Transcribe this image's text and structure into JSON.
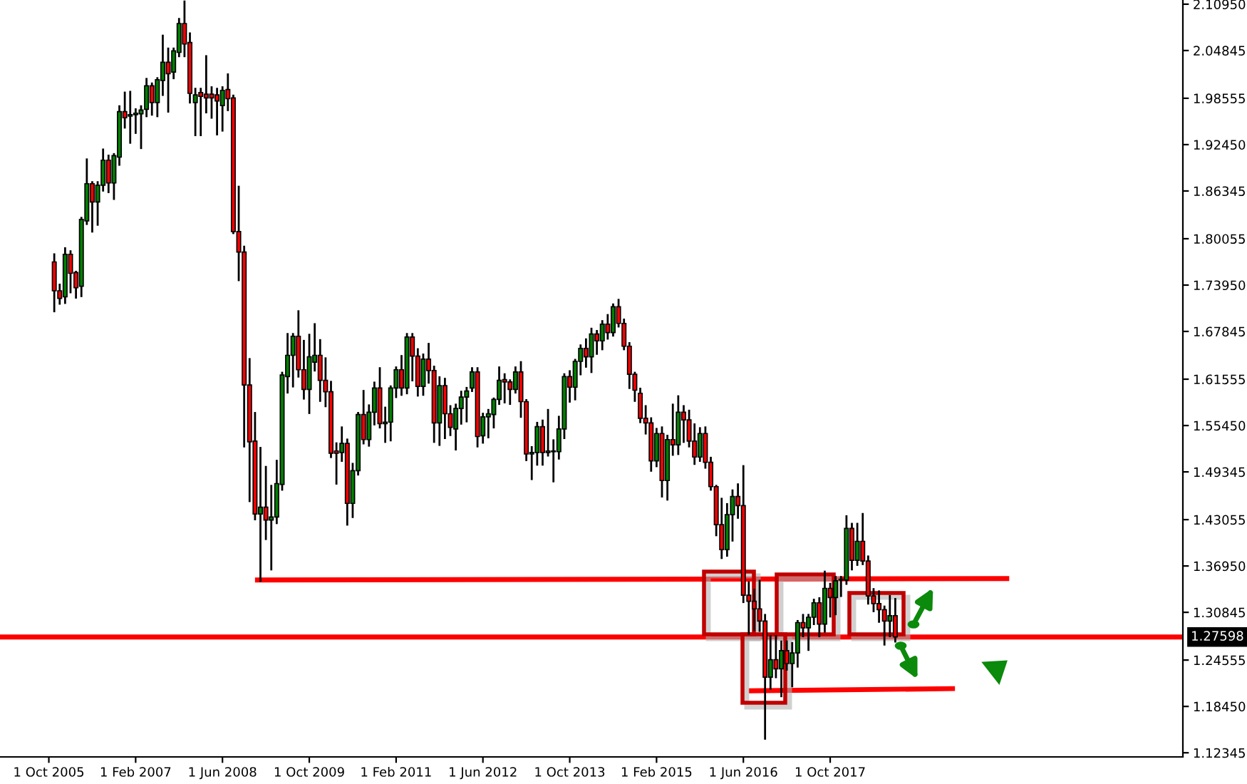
{
  "chart_data": {
    "type": "candlestick",
    "x": [
      "2005-11",
      "2005-12",
      "2006-01",
      "2006-02",
      "2006-03",
      "2006-04",
      "2006-05",
      "2006-06",
      "2006-07",
      "2006-08",
      "2006-09",
      "2006-10",
      "2006-11",
      "2006-12",
      "2007-01",
      "2007-02",
      "2007-03",
      "2007-04",
      "2007-05",
      "2007-06",
      "2007-07",
      "2007-08",
      "2007-09",
      "2007-10",
      "2007-11",
      "2007-12",
      "2008-01",
      "2008-02",
      "2008-03",
      "2008-04",
      "2008-05",
      "2008-06",
      "2008-07",
      "2008-08",
      "2008-09",
      "2008-10",
      "2008-11",
      "2008-12",
      "2009-01",
      "2009-02",
      "2009-03",
      "2009-04",
      "2009-05",
      "2009-06",
      "2009-07",
      "2009-08",
      "2009-09",
      "2009-10",
      "2009-11",
      "2009-12",
      "2010-01",
      "2010-02",
      "2010-03",
      "2010-04",
      "2010-05",
      "2010-06",
      "2010-07",
      "2010-08",
      "2010-09",
      "2010-10",
      "2010-11",
      "2010-12",
      "2011-01",
      "2011-02",
      "2011-03",
      "2011-04",
      "2011-05",
      "2011-06",
      "2011-07",
      "2011-08",
      "2011-09",
      "2011-10",
      "2011-11",
      "2011-12",
      "2012-01",
      "2012-02",
      "2012-03",
      "2012-04",
      "2012-05",
      "2012-06",
      "2012-07",
      "2012-08",
      "2012-09",
      "2012-10",
      "2012-11",
      "2012-12",
      "2013-01",
      "2013-02",
      "2013-03",
      "2013-04",
      "2013-05",
      "2013-06",
      "2013-07",
      "2013-08",
      "2013-09",
      "2013-10",
      "2013-11",
      "2013-12",
      "2014-01",
      "2014-02",
      "2014-03",
      "2014-04",
      "2014-05",
      "2014-06",
      "2014-07",
      "2014-08",
      "2014-09",
      "2014-10",
      "2014-11",
      "2014-12",
      "2015-01",
      "2015-02",
      "2015-03",
      "2015-04",
      "2015-05",
      "2015-06",
      "2015-07",
      "2015-08",
      "2015-09",
      "2015-10",
      "2015-11",
      "2015-12",
      "2016-01",
      "2016-02",
      "2016-03",
      "2016-04",
      "2016-05",
      "2016-06",
      "2016-07",
      "2016-08",
      "2016-09",
      "2016-10",
      "2016-11",
      "2016-12",
      "2017-01",
      "2017-02",
      "2017-03",
      "2017-04",
      "2017-05",
      "2017-06",
      "2017-07",
      "2017-08",
      "2017-09",
      "2017-10",
      "2017-11",
      "2017-12",
      "2018-01",
      "2018-02",
      "2018-03",
      "2018-04",
      "2018-05",
      "2018-06",
      "2018-07",
      "2018-08",
      "2018-09",
      "2018-10"
    ],
    "ohlc": [
      [
        1.77,
        1.78,
        1.705,
        1.732
      ],
      [
        1.732,
        1.74,
        1.715,
        1.722
      ],
      [
        1.724,
        1.788,
        1.716,
        1.78
      ],
      [
        1.78,
        1.784,
        1.73,
        1.755
      ],
      [
        1.756,
        1.757,
        1.723,
        1.736
      ],
      [
        1.738,
        1.828,
        1.725,
        1.826
      ],
      [
        1.824,
        1.905,
        1.82,
        1.873
      ],
      [
        1.873,
        1.875,
        1.81,
        1.849
      ],
      [
        1.849,
        1.875,
        1.819,
        1.871
      ],
      [
        1.871,
        1.918,
        1.864,
        1.904
      ],
      [
        1.904,
        1.91,
        1.862,
        1.874
      ],
      [
        1.874,
        1.912,
        1.853,
        1.91
      ],
      [
        1.908,
        1.975,
        1.898,
        1.968
      ],
      [
        1.968,
        1.993,
        1.947,
        1.96
      ],
      [
        1.962,
        1.994,
        1.927,
        1.964
      ],
      [
        1.964,
        1.971,
        1.94,
        1.966
      ],
      [
        1.965,
        1.975,
        1.92,
        1.97
      ],
      [
        1.971,
        2.011,
        1.962,
        2.002
      ],
      [
        2.002,
        2.005,
        1.964,
        1.98
      ],
      [
        1.98,
        2.012,
        1.962,
        2.01
      ],
      [
        2.009,
        2.068,
        1.99,
        2.033
      ],
      [
        2.033,
        2.051,
        1.968,
        2.018
      ],
      [
        2.02,
        2.051,
        2.012,
        2.048
      ],
      [
        2.046,
        2.09,
        2.041,
        2.084
      ],
      [
        2.084,
        2.113,
        2.041,
        2.057
      ],
      [
        2.059,
        2.071,
        1.98,
        1.992
      ],
      [
        1.98,
        1.998,
        1.937,
        1.99
      ],
      [
        1.993,
        1.998,
        1.937,
        1.988
      ],
      [
        1.991,
        2.041,
        1.967,
        1.986
      ],
      [
        1.991,
        2.0,
        1.96,
        1.986
      ],
      [
        1.99,
        1.998,
        1.938,
        1.982
      ],
      [
        1.976,
        2.0,
        1.943,
        1.996
      ],
      [
        1.997,
        2.017,
        1.97,
        1.985
      ],
      [
        1.986,
        1.989,
        1.808,
        1.81
      ],
      [
        1.81,
        1.869,
        1.746,
        1.783
      ],
      [
        1.783,
        1.79,
        1.527,
        1.608
      ],
      [
        1.608,
        1.642,
        1.455,
        1.533
      ],
      [
        1.534,
        1.571,
        1.431,
        1.438
      ],
      [
        1.438,
        1.525,
        1.35,
        1.447
      ],
      [
        1.447,
        1.5,
        1.405,
        1.43
      ],
      [
        1.43,
        1.475,
        1.365,
        1.434
      ],
      [
        1.434,
        1.508,
        1.426,
        1.478
      ],
      [
        1.477,
        1.624,
        1.47,
        1.621
      ],
      [
        1.619,
        1.675,
        1.598,
        1.647
      ],
      [
        1.647,
        1.675,
        1.606,
        1.672
      ],
      [
        1.672,
        1.705,
        1.619,
        1.628
      ],
      [
        1.628,
        1.666,
        1.59,
        1.602
      ],
      [
        1.602,
        1.674,
        1.571,
        1.645
      ],
      [
        1.638,
        1.688,
        1.627,
        1.647
      ],
      [
        1.647,
        1.667,
        1.587,
        1.614
      ],
      [
        1.614,
        1.643,
        1.58,
        1.599
      ],
      [
        1.599,
        1.612,
        1.513,
        1.518
      ],
      [
        1.521,
        1.531,
        1.478,
        1.518
      ],
      [
        1.519,
        1.552,
        1.508,
        1.531
      ],
      [
        1.531,
        1.536,
        1.424,
        1.452
      ],
      [
        1.452,
        1.504,
        1.434,
        1.495
      ],
      [
        1.495,
        1.571,
        1.49,
        1.569
      ],
      [
        1.569,
        1.6,
        1.531,
        1.536
      ],
      [
        1.536,
        1.581,
        1.528,
        1.572
      ],
      [
        1.572,
        1.611,
        1.556,
        1.604
      ],
      [
        1.604,
        1.63,
        1.552,
        1.557
      ],
      [
        1.557,
        1.578,
        1.533,
        1.559
      ],
      [
        1.559,
        1.606,
        1.535,
        1.604
      ],
      [
        1.604,
        1.631,
        1.592,
        1.628
      ],
      [
        1.628,
        1.646,
        1.595,
        1.604
      ],
      [
        1.604,
        1.675,
        1.597,
        1.671
      ],
      [
        1.671,
        1.675,
        1.614,
        1.646
      ],
      [
        1.646,
        1.655,
        1.594,
        1.606
      ],
      [
        1.606,
        1.648,
        1.595,
        1.642
      ],
      [
        1.642,
        1.662,
        1.611,
        1.627
      ],
      [
        1.627,
        1.632,
        1.533,
        1.558
      ],
      [
        1.558,
        1.618,
        1.529,
        1.607
      ],
      [
        1.607,
        1.616,
        1.538,
        1.57
      ],
      [
        1.57,
        1.58,
        1.542,
        1.552
      ],
      [
        1.55,
        1.582,
        1.523,
        1.577
      ],
      [
        1.577,
        1.599,
        1.557,
        1.592
      ],
      [
        1.592,
        1.604,
        1.56,
        1.6
      ],
      [
        1.604,
        1.63,
        1.6,
        1.625
      ],
      [
        1.625,
        1.63,
        1.527,
        1.54
      ],
      [
        1.541,
        1.57,
        1.532,
        1.566
      ],
      [
        1.566,
        1.575,
        1.539,
        1.57
      ],
      [
        1.569,
        1.59,
        1.552,
        1.589
      ],
      [
        1.589,
        1.631,
        1.583,
        1.614
      ],
      [
        1.615,
        1.622,
        1.585,
        1.612
      ],
      [
        1.612,
        1.614,
        1.583,
        1.602
      ],
      [
        1.602,
        1.631,
        1.598,
        1.625
      ],
      [
        1.625,
        1.638,
        1.566,
        1.586
      ],
      [
        1.586,
        1.588,
        1.509,
        1.517
      ],
      [
        1.517,
        1.526,
        1.484,
        1.519
      ],
      [
        1.519,
        1.558,
        1.503,
        1.553
      ],
      [
        1.553,
        1.561,
        1.503,
        1.519
      ],
      [
        1.519,
        1.575,
        1.515,
        1.521
      ],
      [
        1.521,
        1.535,
        1.481,
        1.52
      ],
      [
        1.52,
        1.566,
        1.511,
        1.55
      ],
      [
        1.55,
        1.622,
        1.538,
        1.619
      ],
      [
        1.619,
        1.626,
        1.586,
        1.605
      ],
      [
        1.605,
        1.641,
        1.589,
        1.639
      ],
      [
        1.639,
        1.66,
        1.622,
        1.656
      ],
      [
        1.656,
        1.668,
        1.632,
        1.645
      ],
      [
        1.645,
        1.682,
        1.625,
        1.675
      ],
      [
        1.675,
        1.679,
        1.649,
        1.666
      ],
      [
        1.666,
        1.692,
        1.655,
        1.688
      ],
      [
        1.688,
        1.7,
        1.669,
        1.677
      ],
      [
        1.677,
        1.714,
        1.673,
        1.711
      ],
      [
        1.711,
        1.72,
        1.685,
        1.689
      ],
      [
        1.689,
        1.694,
        1.655,
        1.659
      ],
      [
        1.659,
        1.663,
        1.604,
        1.622
      ],
      [
        1.622,
        1.624,
        1.587,
        1.601
      ],
      [
        1.597,
        1.603,
        1.559,
        1.564
      ],
      [
        1.564,
        1.58,
        1.544,
        1.558
      ],
      [
        1.558,
        1.564,
        1.495,
        1.508
      ],
      [
        1.508,
        1.55,
        1.501,
        1.544
      ],
      [
        1.544,
        1.552,
        1.461,
        1.482
      ],
      [
        1.482,
        1.541,
        1.457,
        1.536
      ],
      [
        1.536,
        1.582,
        1.516,
        1.529
      ],
      [
        1.529,
        1.593,
        1.517,
        1.572
      ],
      [
        1.572,
        1.58,
        1.533,
        1.562
      ],
      [
        1.562,
        1.574,
        1.527,
        1.534
      ],
      [
        1.534,
        1.556,
        1.504,
        1.513
      ],
      [
        1.513,
        1.551,
        1.508,
        1.544
      ],
      [
        1.544,
        1.552,
        1.499,
        1.506
      ],
      [
        1.506,
        1.512,
        1.47,
        1.474
      ],
      [
        1.474,
        1.475,
        1.41,
        1.424
      ],
      [
        1.424,
        1.458,
        1.38,
        1.391
      ],
      [
        1.391,
        1.451,
        1.383,
        1.437
      ],
      [
        1.437,
        1.469,
        1.403,
        1.461
      ],
      [
        1.461,
        1.477,
        1.433,
        1.449
      ],
      [
        1.449,
        1.501,
        1.322,
        1.331
      ],
      [
        1.331,
        1.348,
        1.28,
        1.323
      ],
      [
        1.323,
        1.338,
        1.285,
        1.313
      ],
      [
        1.313,
        1.35,
        1.284,
        1.297
      ],
      [
        1.297,
        1.305,
        1.142,
        1.223
      ],
      [
        1.223,
        1.277,
        1.208,
        1.246
      ],
      [
        1.246,
        1.277,
        1.223,
        1.234
      ],
      [
        1.234,
        1.27,
        1.198,
        1.258
      ],
      [
        1.258,
        1.27,
        1.233,
        1.241
      ],
      [
        1.241,
        1.268,
        1.211,
        1.255
      ],
      [
        1.255,
        1.297,
        1.237,
        1.295
      ],
      [
        1.295,
        1.305,
        1.277,
        1.288
      ],
      [
        1.288,
        1.305,
        1.259,
        1.302
      ],
      [
        1.302,
        1.325,
        1.293,
        1.321
      ],
      [
        1.321,
        1.327,
        1.277,
        1.293
      ],
      [
        1.293,
        1.362,
        1.283,
        1.34
      ],
      [
        1.34,
        1.346,
        1.303,
        1.328
      ],
      [
        1.328,
        1.355,
        1.306,
        1.35
      ],
      [
        1.352,
        1.355,
        1.33,
        1.351
      ],
      [
        1.351,
        1.435,
        1.346,
        1.419
      ],
      [
        1.419,
        1.425,
        1.365,
        1.377
      ],
      [
        1.377,
        1.425,
        1.371,
        1.402
      ],
      [
        1.402,
        1.438,
        1.372,
        1.376
      ],
      [
        1.376,
        1.382,
        1.32,
        1.33
      ],
      [
        1.33,
        1.339,
        1.31,
        1.32
      ],
      [
        1.32,
        1.336,
        1.296,
        1.312
      ],
      [
        1.312,
        1.316,
        1.266,
        1.297
      ],
      [
        1.297,
        1.33,
        1.277,
        1.304
      ],
      [
        1.304,
        1.326,
        1.27,
        1.276
      ]
    ],
    "series": [
      {
        "type": "line",
        "x": [
          "2008-12",
          "2020-07"
        ],
        "values": [
          1.351,
          1.353
        ],
        "color": "#ff0000"
      },
      {
        "type": "line",
        "x": [
          "2016-07",
          "2019-09"
        ],
        "values": [
          1.205,
          1.208
        ],
        "color": "#ff0000"
      }
    ],
    "ref_lines": [
      {
        "axis": "y",
        "value": 1.27598,
        "label": "1.27598",
        "color": "#ff0000"
      }
    ],
    "xlim": [
      "2005-01",
      "2023-03"
    ],
    "xticks": [
      {
        "value": "2005-10-01",
        "label": "1 Oct 2005"
      },
      {
        "value": "2007-02-01",
        "label": "1 Feb 2007"
      },
      {
        "value": "2008-06-01",
        "label": "1 Jun 2008"
      },
      {
        "value": "2009-10-01",
        "label": "1 Oct 2009"
      },
      {
        "value": "2011-02-01",
        "label": "1 Feb 2011"
      },
      {
        "value": "2012-06-01",
        "label": "1 Jun 2012"
      },
      {
        "value": "2013-10-01",
        "label": "1 Oct 2013"
      },
      {
        "value": "2015-02-01",
        "label": "1 Feb 2015"
      },
      {
        "value": "2016-06-01",
        "label": "1 Jun 2016"
      },
      {
        "value": "2017-10-01",
        "label": "1 Oct 2017"
      }
    ],
    "ylim": [
      1.118,
      2.115
    ],
    "yticks": [
      {
        "value": 2.1095,
        "label": "2.10950"
      },
      {
        "value": 2.04845,
        "label": "2.04845"
      },
      {
        "value": 1.98555,
        "label": "1.98555"
      },
      {
        "value": 1.9245,
        "label": "1.92450"
      },
      {
        "value": 1.86345,
        "label": "1.86345"
      },
      {
        "value": 1.80055,
        "label": "1.80055"
      },
      {
        "value": 1.7395,
        "label": "1.73950"
      },
      {
        "value": 1.67845,
        "label": "1.67845"
      },
      {
        "value": 1.61555,
        "label": "1.61555"
      },
      {
        "value": 1.5545,
        "label": "1.55450"
      },
      {
        "value": 1.49345,
        "label": "1.49345"
      },
      {
        "value": 1.43055,
        "label": "1.43055"
      },
      {
        "value": 1.3695,
        "label": "1.36950"
      },
      {
        "value": 1.30845,
        "label": "1.30845"
      },
      {
        "value": 1.24555,
        "label": "1.24555"
      },
      {
        "value": 1.1845,
        "label": "1.18450"
      },
      {
        "value": 1.12345,
        "label": "1.12345"
      }
    ],
    "grid": false
  }
}
